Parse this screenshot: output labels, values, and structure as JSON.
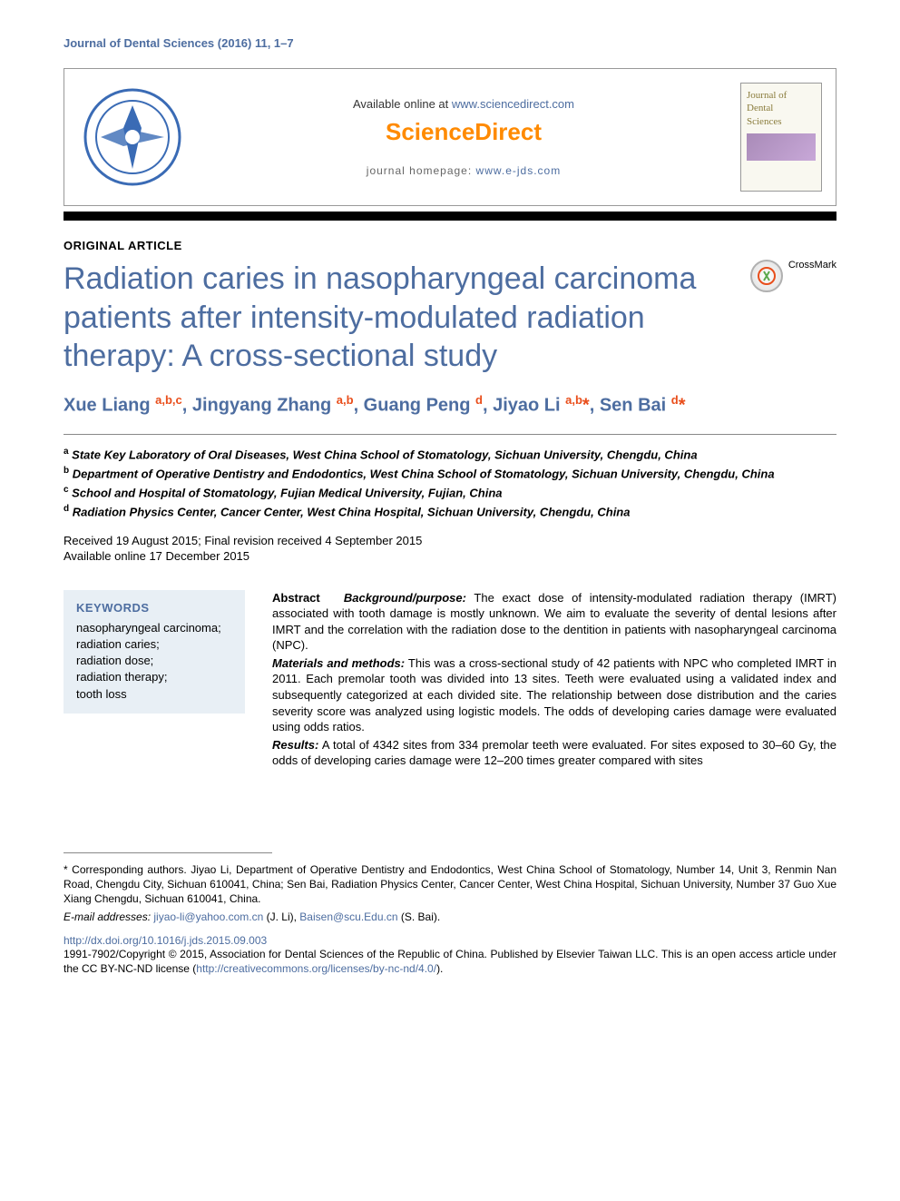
{
  "journal_ref": "Journal of Dental Sciences (2016) 11, 1–7",
  "header": {
    "availability_prefix": "Available online at ",
    "availability_url": "www.sciencedirect.com",
    "brand": "ScienceDirect",
    "homepage_prefix": "journal homepage: ",
    "homepage_url": "www.e-jds.com",
    "cover_title_1": "Journal of",
    "cover_title_2": "Dental",
    "cover_title_3": "Sciences"
  },
  "article_type": "ORIGINAL ARTICLE",
  "title": "Radiation caries in nasopharyngeal carcinoma patients after intensity-modulated radiation therapy: A cross-sectional study",
  "crossmark_label": "CrossMark",
  "authors_html": "Xue Liang <sup>a,b,c</sup>, Jingyang Zhang <sup>a,b</sup>, Guang Peng <sup>d</sup>, Jiyao Li <sup>a,b</sup><span class='ast'>*</span>, Sen Bai <sup>d</sup><span class='ast'>*</span>",
  "affiliations": [
    {
      "sup": "a",
      "text": "State Key Laboratory of Oral Diseases, West China School of Stomatology, Sichuan University, Chengdu, China"
    },
    {
      "sup": "b",
      "text": "Department of Operative Dentistry and Endodontics, West China School of Stomatology, Sichuan University, Chengdu, China"
    },
    {
      "sup": "c",
      "text": "School and Hospital of Stomatology, Fujian Medical University, Fujian, China"
    },
    {
      "sup": "d",
      "text": "Radiation Physics Center, Cancer Center, West China Hospital, Sichuan University, Chengdu, China"
    }
  ],
  "dates_line1": "Received 19 August 2015; Final revision received 4 September 2015",
  "dates_line2": "Available online 17 December 2015",
  "keywords_heading": "KEYWORDS",
  "keywords": [
    "nasopharyngeal carcinoma;",
    "radiation caries;",
    "radiation dose;",
    "radiation therapy;",
    "tooth loss"
  ],
  "abstract": {
    "label": "Abstract",
    "background_head": "Background/purpose:",
    "background_text": " The exact dose of intensity-modulated radiation therapy (IMRT) associated with tooth damage is mostly unknown. We aim to evaluate the severity of dental lesions after IMRT and the correlation with the radiation dose to the dentition in patients with nasopharyngeal carcinoma (NPC).",
    "methods_head": "Materials and methods:",
    "methods_text": " This was a cross-sectional study of 42 patients with NPC who completed IMRT in 2011. Each premolar tooth was divided into 13 sites. Teeth were evaluated using a validated index and subsequently categorized at each divided site. The relationship between dose distribution and the caries severity score was analyzed using logistic models. The odds of developing caries damage were evaluated using odds ratios.",
    "results_head": "Results:",
    "results_text": " A total of 4342 sites from 334 premolar teeth were evaluated. For sites exposed to 30–60 Gy, the odds of developing caries damage were 12–200 times greater compared with sites"
  },
  "footnotes": {
    "corr": "* Corresponding authors. Jiyao Li, Department of Operative Dentistry and Endodontics, West China School of Stomatology, Number 14, Unit 3, Renmin Nan Road, Chengdu City, Sichuan 610041, China; Sen Bai, Radiation Physics Center, Cancer Center, West China Hospital, Sichuan University, Number 37 Guo Xue Xiang Chengdu, Sichuan 610041, China.",
    "email_label": "E-mail addresses: ",
    "email1": "jiyao-li@yahoo.com.cn",
    "email1_who": " (J. Li), ",
    "email2": "Baisen@scu.Edu.cn",
    "email2_who": " (S. Bai).",
    "doi": "http://dx.doi.org/10.1016/j.jds.2015.09.003",
    "copyright_prefix": "1991-7902/Copyright © 2015, Association for Dental Sciences of the Republic of China. Published by Elsevier Taiwan LLC. This is an open access article under the CC BY-NC-ND license (",
    "cc_url": "http://creativecommons.org/licenses/by-nc-nd/4.0/",
    "copyright_suffix": ")."
  }
}
